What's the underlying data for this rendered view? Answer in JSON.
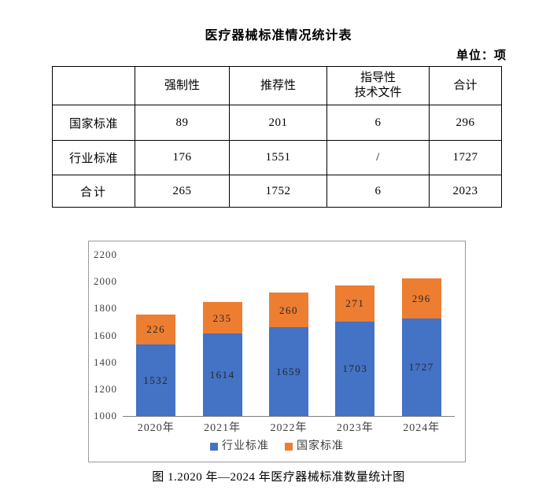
{
  "page": {
    "title": "医疗器械标准情况统计表",
    "unit_label": "单位：项",
    "caption": "图 1.2020 年—2024 年医疗器械标准数量统计图"
  },
  "table": {
    "col_headers": [
      "",
      "强制性",
      "推荐性",
      "指导性\n技术文件",
      "合计"
    ],
    "rows": [
      {
        "label": "国家标准",
        "values": [
          "89",
          "201",
          "6",
          "296"
        ]
      },
      {
        "label": "行业标准",
        "values": [
          "176",
          "1551",
          "/",
          "1727"
        ]
      },
      {
        "label": "合计",
        "values": [
          "265",
          "1752",
          "6",
          "2023"
        ]
      }
    ]
  },
  "chart_data": {
    "type": "bar",
    "stacked": true,
    "title": "",
    "xlabel": "",
    "ylabel": "",
    "categories": [
      "2020年",
      "2021年",
      "2022年",
      "2023年",
      "2024年"
    ],
    "series": [
      {
        "name": "行业标准",
        "key": "industry-standard",
        "color": "#4472C4",
        "values": [
          1532,
          1614,
          1659,
          1703,
          1727
        ]
      },
      {
        "name": "国家标准",
        "key": "national-standard",
        "color": "#ED7D31",
        "values": [
          226,
          235,
          260,
          271,
          296
        ]
      }
    ],
    "totals": [
      1758,
      1849,
      1919,
      1974,
      2023
    ],
    "ylim": [
      1000,
      2200
    ],
    "ytick_step": 200,
    "grid": false,
    "legend_position": "bottom"
  },
  "colors": {
    "industry_blue": "#4472C4",
    "national_orange": "#ED7D31",
    "chart_border": "#9A9A9A",
    "axis_line": "#7F7F7F"
  }
}
